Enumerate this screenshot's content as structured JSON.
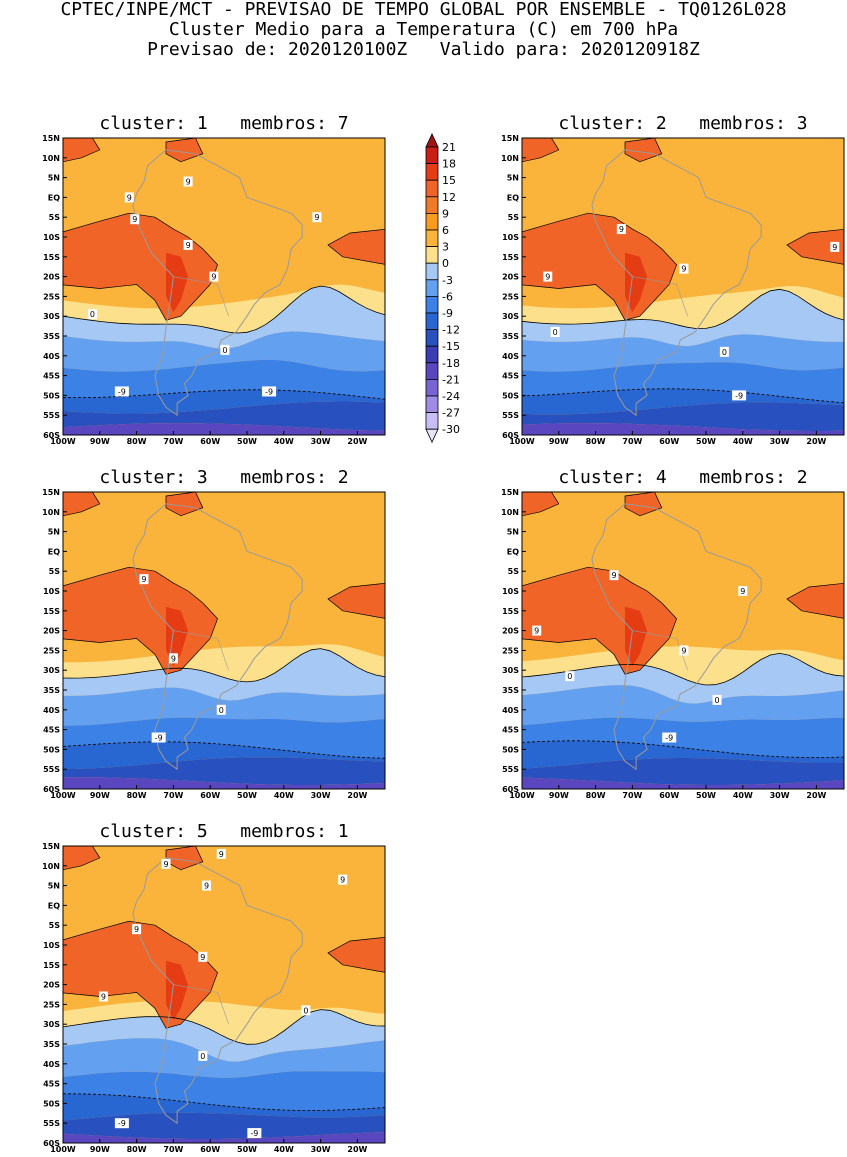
{
  "header": {
    "line1": "CPTEC/INPE/MCT - PREVISAO DE TEMPO GLOBAL POR ENSEMBLE - TQ0126L028",
    "line2": "Cluster Medio para a Temperatura (C) em 700 hPa",
    "line3": "Previsao de: 2020120100Z   Valido para: 2020120918Z"
  },
  "axes": {
    "lat_labels": [
      "15N",
      "10N",
      "5N",
      "EQ",
      "5S",
      "10S",
      "15S",
      "20S",
      "25S",
      "30S",
      "35S",
      "40S",
      "45S",
      "50S",
      "55S",
      "60S"
    ],
    "lon_labels": [
      "100W",
      "90W",
      "80W",
      "70W",
      "60W",
      "50W",
      "40W",
      "30W",
      "20W"
    ]
  },
  "colorbar": {
    "labels": [
      "21",
      "18",
      "15",
      "12",
      "9",
      "6",
      "3",
      "0",
      "-3",
      "-6",
      "-9",
      "-12",
      "-15",
      "-18",
      "-21",
      "-24",
      "-27",
      "-30"
    ],
    "colors": [
      "#a01414",
      "#c81e14",
      "#e63c14",
      "#f06428",
      "#f07a28",
      "#fa9a1e",
      "#fab43c",
      "#fce08c",
      "#a5c8f5",
      "#64a0f0",
      "#3c82e6",
      "#2866d2",
      "#2850be",
      "#3c3cb4",
      "#5a46be",
      "#7864d2",
      "#a08ce6",
      "#c8bef5"
    ]
  },
  "panels": [
    {
      "title": "cluster: 1   membros: 7",
      "labels": [
        {
          "t": "9",
          "lon": -80.5,
          "lat": -5.5
        },
        {
          "t": "9",
          "lon": -66,
          "lat": 4
        },
        {
          "t": "9",
          "lon": -82,
          "lat": 0
        },
        {
          "t": "9",
          "lon": -66,
          "lat": -12
        },
        {
          "t": "9",
          "lon": -59,
          "lat": -20
        },
        {
          "t": "9",
          "lon": -31,
          "lat": -5
        },
        {
          "t": "0",
          "lon": -92,
          "lat": -29.5
        },
        {
          "t": "0",
          "lon": -56,
          "lat": -38.5
        },
        {
          "t": "-9",
          "lon": -84,
          "lat": -49
        },
        {
          "t": "-9",
          "lon": -44,
          "lat": -49
        }
      ]
    },
    {
      "title": "cluster: 2   membros: 3",
      "labels": [
        {
          "t": "9",
          "lon": -73,
          "lat": -8
        },
        {
          "t": "9",
          "lon": -56,
          "lat": -18
        },
        {
          "t": "9",
          "lon": -93,
          "lat": -20
        },
        {
          "t": "9",
          "lon": -15,
          "lat": -12.5
        },
        {
          "t": "0",
          "lon": -91,
          "lat": -34
        },
        {
          "t": "0",
          "lon": -45,
          "lat": -39
        },
        {
          "t": "-9",
          "lon": -41,
          "lat": -50
        }
      ]
    },
    {
      "title": "cluster: 3   membros: 2",
      "labels": [
        {
          "t": "9",
          "lon": -78,
          "lat": -7
        },
        {
          "t": "9",
          "lon": -70,
          "lat": -27
        },
        {
          "t": "0",
          "lon": -57,
          "lat": -40
        },
        {
          "t": "-9",
          "lon": -74,
          "lat": -47
        }
      ]
    },
    {
      "title": "cluster: 4   membros: 2",
      "labels": [
        {
          "t": "9",
          "lon": -75,
          "lat": -6
        },
        {
          "t": "9",
          "lon": -40,
          "lat": -10
        },
        {
          "t": "9",
          "lon": -96,
          "lat": -20
        },
        {
          "t": "9",
          "lon": -56,
          "lat": -25
        },
        {
          "t": "0",
          "lon": -87,
          "lat": -31.5
        },
        {
          "t": "0",
          "lon": -47,
          "lat": -37.5
        },
        {
          "t": "-9",
          "lon": -60,
          "lat": -47
        }
      ]
    },
    {
      "title": "cluster: 5   membros: 1",
      "labels": [
        {
          "t": "9",
          "lon": -57,
          "lat": 13
        },
        {
          "t": "9",
          "lon": -72,
          "lat": 10.5
        },
        {
          "t": "9",
          "lon": -61,
          "lat": 5
        },
        {
          "t": "9",
          "lon": -24,
          "lat": 6.5
        },
        {
          "t": "9",
          "lon": -80,
          "lat": -6
        },
        {
          "t": "9",
          "lon": -62,
          "lat": -13
        },
        {
          "t": "9",
          "lon": -89,
          "lat": -23
        },
        {
          "t": "0",
          "lon": -34,
          "lat": -26.5
        },
        {
          "t": "0",
          "lon": -62,
          "lat": -38
        },
        {
          "t": "-9",
          "lon": -84,
          "lat": -55
        },
        {
          "t": "-9",
          "lon": -48,
          "lat": -57.5
        }
      ]
    }
  ]
}
